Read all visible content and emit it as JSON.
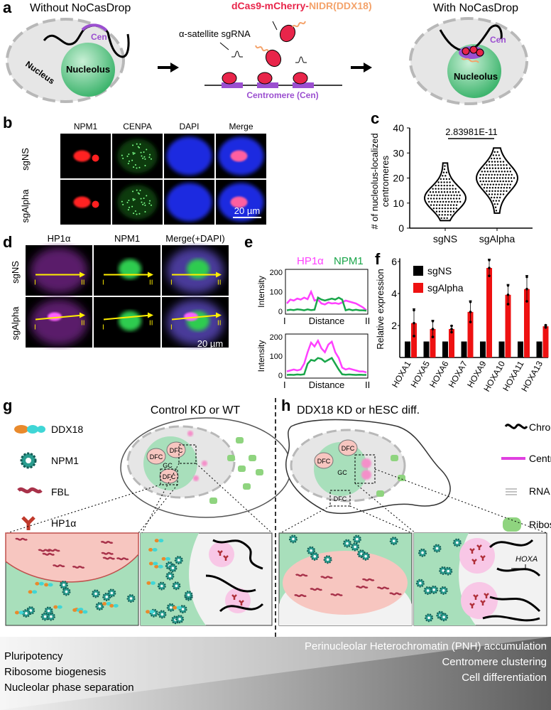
{
  "panels": {
    "a": {
      "label": "a",
      "left_title": "Without NoCasDrop",
      "right_title": "With NoCasDrop",
      "construct_part1": "dCas9-mCherry-",
      "construct_part2": "NIDR(DDX18)",
      "sgrna_label": "α-satellite sgRNA",
      "centromere_label": "Centromere (Cen)",
      "cen": "Cen",
      "nucleolus": "Nucleolus",
      "nucleus": "Nucleus",
      "colors": {
        "construct": "#e8254a",
        "nidr": "#f4a36b",
        "centromere": "#9b4fd0",
        "nucleolus": "#5cc383"
      }
    },
    "b": {
      "label": "b",
      "columns": [
        "NPM1",
        "CENPA",
        "DAPI",
        "Merge"
      ],
      "rows": [
        "sgNS",
        "sgAlpha"
      ],
      "scale_bar": "20 µm"
    },
    "d": {
      "label": "d",
      "columns": [
        "HP1α",
        "NPM1",
        "Merge(+DAPI)"
      ],
      "rows": [
        "sgNS",
        "sgAlpha"
      ],
      "scale_bar": "20 µm",
      "arrow_start": "I",
      "arrow_end": "II"
    },
    "g": {
      "label": "g",
      "title": "Control KD or WT",
      "legend": [
        "DDX18",
        "NPM1",
        "FBL",
        "HP1α"
      ],
      "dfc": "DFC",
      "gc": "GC"
    },
    "h": {
      "label": "h",
      "title": "DDX18 KD or hESC diff.",
      "legend": [
        "Chromatin",
        "Centromere",
        "RNA",
        "Ribosome"
      ],
      "dfc": "DFC",
      "gc": "GC",
      "hoxa": "HOXA"
    },
    "bottom": {
      "left": [
        "Pluripotency",
        "Ribosome biogenesis",
        "Nucleolar phase separation"
      ],
      "right": [
        "Perinucleolar Heterochromatin (PNH) accumulation",
        "Centromere clustering",
        "Cell differentiation"
      ]
    }
  },
  "chart_data": [
    {
      "panel": "c",
      "label": "c",
      "type": "violin",
      "categories": [
        "sgNS",
        "sgAlpha"
      ],
      "ylabel": "# of nucleolus-localized centromeres",
      "ylim": [
        0,
        40
      ],
      "yticks": [
        0,
        10,
        20,
        30,
        40
      ],
      "annotation": "2.83981E-11",
      "series": [
        {
          "category": "sgNS",
          "min": 3,
          "max": 26,
          "mode": 12
        },
        {
          "category": "sgAlpha",
          "min": 6,
          "max": 32,
          "mode": 20
        }
      ]
    },
    {
      "panel": "e",
      "label": "e",
      "type": "line",
      "legend": [
        "HP1α",
        "NPM1"
      ],
      "colors": {
        "HP1α": "#ff40ff",
        "NPM1": "#1aa64a"
      },
      "ylabel": "Intensity",
      "xlabel": "Distance",
      "x_start": "I",
      "x_end": "II",
      "ylim": [
        0,
        200
      ],
      "yticks": [
        0,
        100,
        200
      ],
      "profiles": [
        {
          "row": "sgNS",
          "HP1α": [
            40,
            60,
            55,
            65,
            60,
            70,
            62,
            100,
            55,
            60,
            40,
            35,
            45,
            40,
            42,
            38,
            45,
            55,
            50,
            45,
            40,
            30,
            20,
            5
          ],
          "NPM1": [
            5,
            8,
            6,
            10,
            8,
            5,
            10,
            6,
            8,
            70,
            60,
            55,
            60,
            65,
            60,
            70,
            60,
            5,
            10,
            5,
            8,
            5,
            5,
            3
          ]
        },
        {
          "row": "sgAlpha",
          "HP1α": [
            20,
            25,
            30,
            25,
            30,
            60,
            120,
            170,
            150,
            180,
            140,
            120,
            160,
            175,
            120,
            90,
            40,
            30,
            35,
            30,
            25,
            20,
            20,
            15
          ],
          "NPM1": [
            2,
            3,
            2,
            4,
            3,
            5,
            60,
            80,
            75,
            90,
            85,
            70,
            80,
            90,
            60,
            30,
            5,
            3,
            4,
            3,
            2,
            3,
            2,
            2
          ]
        }
      ]
    },
    {
      "panel": "f",
      "label": "f",
      "type": "bar",
      "categories": [
        "HOXA1",
        "HOXA5",
        "HOXA6",
        "HOXA7",
        "HOXA9",
        "HOXA10",
        "HOXA11",
        "HOXA13"
      ],
      "ylabel": "Relative expression",
      "ylim": [
        0,
        6
      ],
      "yticks": [
        2,
        4,
        6
      ],
      "series": [
        {
          "name": "sgNS",
          "color": "#000000",
          "values": [
            1,
            1,
            1,
            1,
            1,
            1,
            1,
            1
          ]
        },
        {
          "name": "sgAlpha",
          "color": "#ee1111",
          "values": [
            2.15,
            1.78,
            1.78,
            2.85,
            5.6,
            3.92,
            4.28,
            1.95
          ],
          "errors": [
            0.9,
            0.55,
            0.22,
            0.7,
            0.55,
            0.65,
            0.85,
            0.08
          ]
        }
      ]
    }
  ]
}
